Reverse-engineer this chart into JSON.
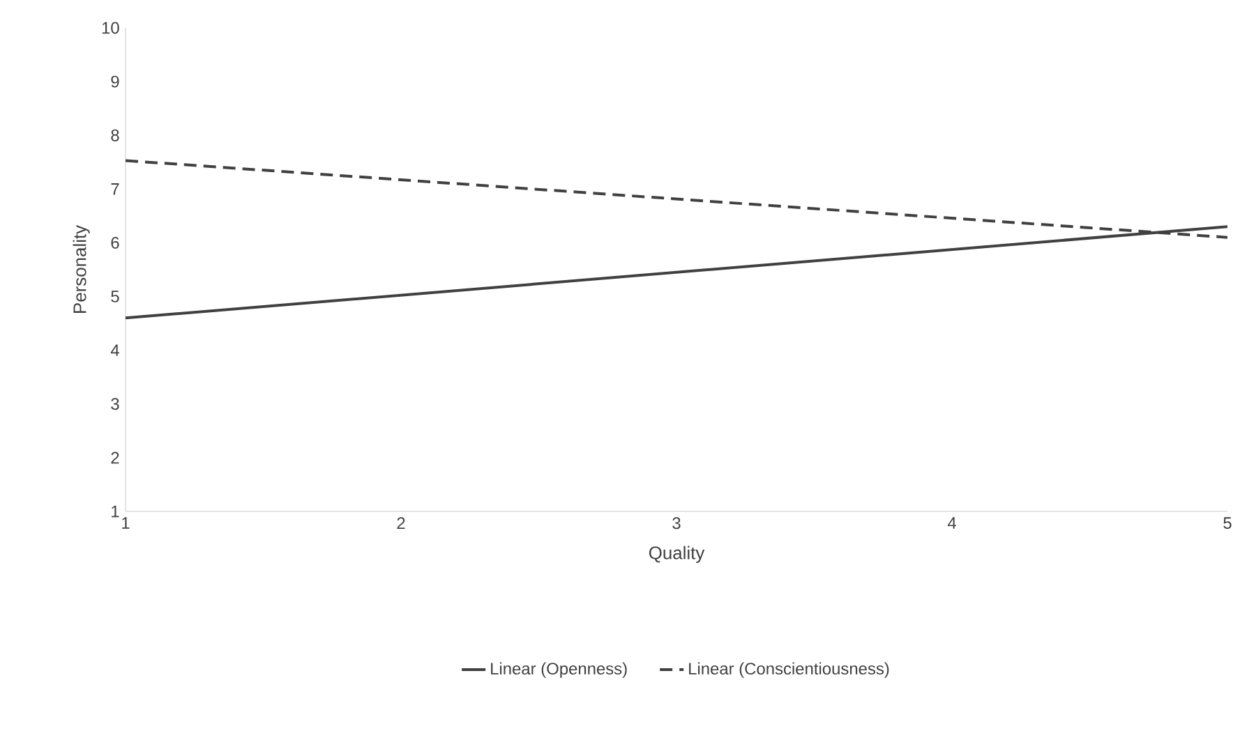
{
  "chart_data": {
    "type": "line",
    "xlabel": "Quality",
    "ylabel": "Personality",
    "x": [
      1,
      5
    ],
    "xlim": [
      1,
      5
    ],
    "xticks": [
      1,
      2,
      3,
      4,
      5
    ],
    "ylim": [
      1,
      10
    ],
    "yticks": [
      1,
      2,
      3,
      4,
      5,
      6,
      7,
      8,
      9,
      10
    ],
    "grid": false,
    "legend": "bottom",
    "marker": "none",
    "series": [
      {
        "name": "Linear (Openness)",
        "color": "#404040",
        "values": [
          4.6,
          6.3
        ],
        "line_style": "solid"
      },
      {
        "name": "Linear (Conscientiousness)",
        "color": "#404040",
        "values": [
          7.53,
          6.1
        ],
        "line_style": "dashed"
      }
    ]
  }
}
